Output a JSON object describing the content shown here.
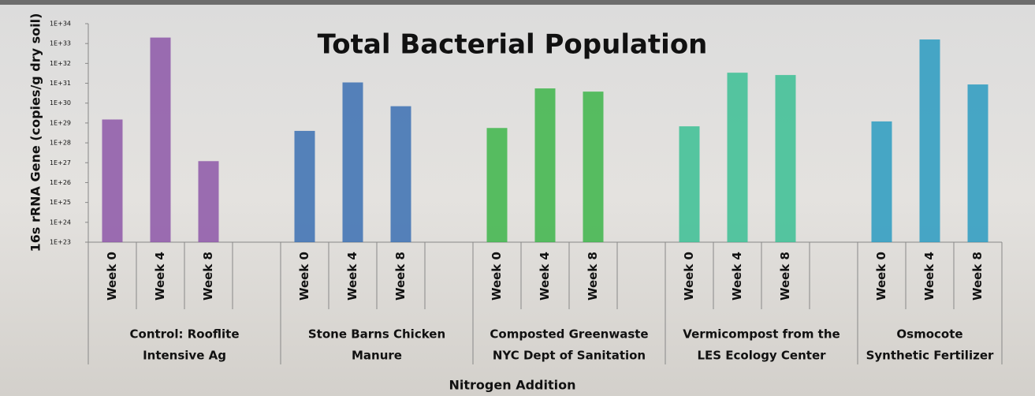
{
  "chart_data": {
    "type": "bar",
    "title": "Total Bacterial Population",
    "y_label": "16s rRNA Gene (copies/g dry soil)",
    "x_label": "Nitrogen Addition",
    "log_scale": true,
    "ylim": [
      1e+23,
      1e+34
    ],
    "yticks": [
      {
        "value": 1e+23,
        "label": "1E+23"
      },
      {
        "value": 1e+24,
        "label": "1E+24"
      },
      {
        "value": 1e+25,
        "label": "1E+25"
      },
      {
        "value": 1e+26,
        "label": "1E+26"
      },
      {
        "value": 1e+27,
        "label": "1E+27"
      },
      {
        "value": 1e+28,
        "label": "1E+28"
      },
      {
        "value": 1e+29,
        "label": "1E+29"
      },
      {
        "value": 1e+30,
        "label": "1E+30"
      },
      {
        "value": 1e+31,
        "label": "1E+31"
      },
      {
        "value": 1e+32,
        "label": "1E+32"
      },
      {
        "value": 1e+33,
        "label": "1E+33"
      },
      {
        "value": 1e+34,
        "label": "1E+34"
      }
    ],
    "groups": [
      {
        "name_lines": [
          "Control: Rooflite",
          "Intensive Ag"
        ],
        "color": "#8d57a8",
        "categories": [
          "Week 0",
          "Week 4",
          "Week 8"
        ],
        "values": [
          1.5e+29,
          2e+33,
          1.2e+27
        ]
      },
      {
        "name_lines": [
          "Stone Barns Chicken",
          "Manure"
        ],
        "color": "#3b70b3",
        "categories": [
          "Week 0",
          "Week 4",
          "Week 8"
        ],
        "values": [
          4e+28,
          1.1e+31,
          7e+29
        ]
      },
      {
        "name_lines": [
          "Composted Greenwaste",
          "NYC Dept of Sanitation"
        ],
        "color": "#3db54a",
        "categories": [
          "Week 0",
          "Week 4",
          "Week 8"
        ],
        "values": [
          5.6e+28,
          5.5e+30,
          3.8e+30
        ]
      },
      {
        "name_lines": [
          "Vermicompost from the",
          "LES Ecology Center"
        ],
        "color": "#3bbf94",
        "categories": [
          "Week 0",
          "Week 4",
          "Week 8"
        ],
        "values": [
          6.8e+28,
          3.4e+31,
          2.6e+31
        ]
      },
      {
        "name_lines": [
          "Osmocote",
          "Synthetic Fertilizer"
        ],
        "color": "#2a9bc1",
        "categories": [
          "Week 0",
          "Week 4",
          "Week 8"
        ],
        "values": [
          1.2e+29,
          1.6e+33,
          8.7e+30
        ]
      }
    ]
  }
}
